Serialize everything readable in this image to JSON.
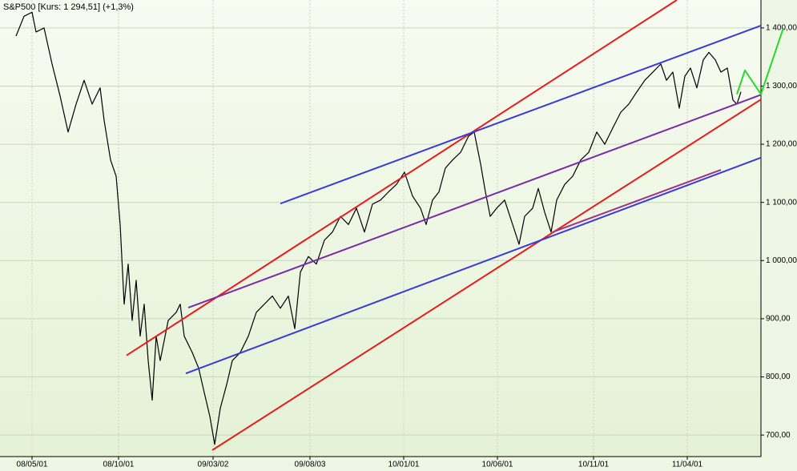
{
  "chart_data": {
    "type": "line",
    "title": "S&P500 [Kurs: 1 294,51] (+1,3%)",
    "xlim": [
      0,
      950
    ],
    "ylim": [
      663,
      1448
    ],
    "xticks": [
      {
        "value": 40,
        "label": "08/05/01"
      },
      {
        "value": 148,
        "label": "08/10/01"
      },
      {
        "value": 266,
        "label": "09/03/02"
      },
      {
        "value": 387,
        "label": "09/08/03"
      },
      {
        "value": 504,
        "label": "10/01/01"
      },
      {
        "value": 621,
        "label": "10/06/01"
      },
      {
        "value": 741,
        "label": "10/11/01"
      },
      {
        "value": 858,
        "label": "11/04/01"
      }
    ],
    "yticks": [
      {
        "value": 700,
        "label": "700,00"
      },
      {
        "value": 800,
        "label": "800,00"
      },
      {
        "value": 900,
        "label": "900,00"
      },
      {
        "value": 1000,
        "label": "1 000,00"
      },
      {
        "value": 1100,
        "label": "1 100,00"
      },
      {
        "value": 1200,
        "label": "1 200,00"
      },
      {
        "value": 1300,
        "label": "1 300,00"
      },
      {
        "value": 1400,
        "label": "1 400,00"
      }
    ],
    "grid": true,
    "series": [
      {
        "color": "#000000",
        "x": [
          20,
          30,
          40,
          45,
          55,
          65,
          75,
          85,
          95,
          105,
          115,
          125,
          130,
          138,
          145,
          150,
          155,
          160,
          165,
          170,
          175,
          180,
          185,
          190,
          195,
          200,
          210,
          220,
          225,
          230,
          240,
          248,
          255,
          262,
          268,
          275,
          283,
          290,
          300,
          310,
          320,
          330,
          340,
          350,
          360,
          368,
          375,
          385,
          395,
          405,
          415,
          425,
          435,
          445,
          455,
          465,
          475,
          485,
          495,
          505,
          515,
          525,
          532,
          540,
          548,
          556,
          565,
          575,
          585,
          592,
          600,
          606,
          612,
          620,
          630,
          640,
          648,
          655,
          665,
          672,
          680,
          688,
          695,
          705,
          715,
          725,
          735,
          745,
          755,
          765,
          775,
          785,
          795,
          805,
          815,
          825,
          832,
          840,
          848,
          855,
          862,
          870,
          878,
          885,
          893,
          900,
          908,
          915,
          920,
          925
        ],
        "values": [
          1386,
          1420,
          1427,
          1393,
          1400,
          1338,
          1283,
          1221,
          1269,
          1310,
          1269,
          1297,
          1241,
          1173,
          1145,
          1062,
          925,
          994,
          897,
          966,
          870,
          925,
          828,
          760,
          870,
          828,
          897,
          911,
          925,
          870,
          842,
          815,
          773,
          732,
          684,
          746,
          787,
          828,
          842,
          870,
          911,
          925,
          939,
          918,
          939,
          883,
          980,
          1007,
          994,
          1035,
          1049,
          1076,
          1062,
          1090,
          1049,
          1097,
          1104,
          1118,
          1131,
          1152,
          1111,
          1090,
          1062,
          1104,
          1118,
          1159,
          1173,
          1186,
          1214,
          1221,
          1166,
          1118,
          1076,
          1090,
          1104,
          1062,
          1028,
          1076,
          1090,
          1124,
          1083,
          1049,
          1104,
          1131,
          1145,
          1173,
          1186,
          1221,
          1200,
          1228,
          1255,
          1269,
          1290,
          1310,
          1324,
          1338,
          1310,
          1324,
          1262,
          1317,
          1331,
          1297,
          1345,
          1358,
          1345,
          1324,
          1331,
          1276,
          1269,
          1290
        ]
      }
    ],
    "trendlines": [
      {
        "color": "#e81c1c",
        "x": [
          158,
          845
        ],
        "values": [
          837,
          1448
        ]
      },
      {
        "color": "#e81c1c",
        "x": [
          265,
          950
        ],
        "values": [
          674,
          1277
        ]
      },
      {
        "color": "#3a3ad8",
        "x": [
          350,
          950
        ],
        "values": [
          1098,
          1404
        ]
      },
      {
        "color": "#3a3ad8",
        "x": [
          232,
          950
        ],
        "values": [
          806,
          1177
        ]
      },
      {
        "color": "#7a2aa8",
        "x": [
          235,
          950
        ],
        "values": [
          919,
          1285
        ]
      },
      {
        "color": "#a0308a",
        "x": [
          690,
          900
        ],
        "values": [
          1049,
          1156
        ]
      },
      {
        "color": "#2ad82a",
        "x": [
          920,
          930,
          950,
          978
        ],
        "values": [
          1286,
          1327,
          1286,
          1400
        ]
      }
    ]
  }
}
